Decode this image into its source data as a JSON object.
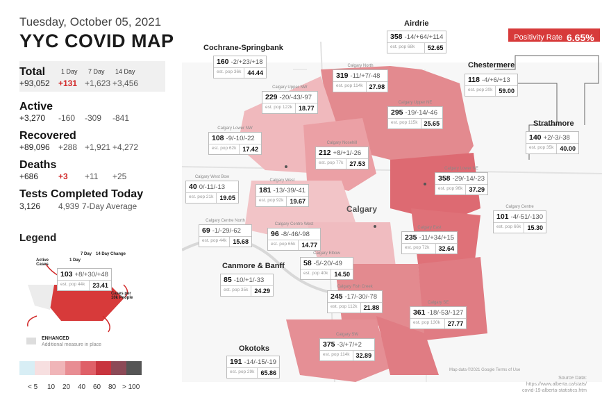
{
  "header": {
    "date": "Tuesday, October 05, 2021",
    "title": "YYC COVID MAP"
  },
  "positivity": {
    "label": "Positivity Rate",
    "value": "6.65%"
  },
  "stats": {
    "col_1day": "1 Day",
    "col_7day": "7 Day",
    "col_14day": "14 Day",
    "total": {
      "label": "Total",
      "value": "+93,052",
      "d1": "+131",
      "d7": "+1,623",
      "d14": "+3,456"
    },
    "active": {
      "label": "Active",
      "value": "+3,270",
      "d1": "-160",
      "d7": "-309",
      "d14": "-841"
    },
    "recovered": {
      "label": "Recovered",
      "value": "+89,096",
      "d1": "+288",
      "d7": "+1,921",
      "d14": "+4,272"
    },
    "deaths": {
      "label": "Deaths",
      "value": "+686",
      "d1": "+3",
      "d7": "+11",
      "d14": "+25"
    },
    "tests": {
      "label": "Tests Completed Today",
      "value": "3,126",
      "avg": "4,939",
      "avg_label": "7-Day Average"
    }
  },
  "legend": {
    "title": "Legend",
    "active_cases": "Active Cases",
    "one_day": "1 Day",
    "seven_day": "7 Day",
    "fourteen_day_change": "14 Day Change",
    "cases_per": "Cases per 10k People",
    "sample_value": "103",
    "sample_change": "+8/+30/+48",
    "sample_pop": "est. pop 44k",
    "sample_rate": "23.41",
    "enhanced": "ENHANCED",
    "enhanced_desc": "Additional measure in place",
    "scale": [
      "< 5",
      "10",
      "20",
      "40",
      "60",
      "80",
      "> 100"
    ],
    "scale_colors": [
      "#d8eef5",
      "#f7dfe0",
      "#f0b5b8",
      "#e88d93",
      "#df6068",
      "#c8343e",
      "#8c4a57",
      "#555555"
    ]
  },
  "map_labels": {
    "calgary": "Calgary",
    "cochrane": "Cochrane",
    "chestermere": "Chestermere",
    "airdrie": "Airdrie",
    "strathmore": "Strathmore",
    "canmore": "Canmore & Banff",
    "okotoks": "Okotoks",
    "cochrane_springbank": "Cochrane-Springbank"
  },
  "areas": [
    {
      "id": "cochrane-springbank",
      "name": "",
      "value": "160",
      "change": "-2/+23/+18",
      "pop": "est. pop 36k",
      "rate": "44.44"
    },
    {
      "id": "airdrie",
      "name": "",
      "value": "358",
      "change": "-14/+64/+114",
      "pop": "est. pop 68k",
      "rate": "52.65"
    },
    {
      "id": "chestermere",
      "name": "",
      "value": "118",
      "change": "-4/+6/+13",
      "pop": "est. pop 20k",
      "rate": "59.00"
    },
    {
      "id": "strathmore",
      "name": "",
      "value": "140",
      "change": "+2/-3/-38",
      "pop": "est. pop 35k",
      "rate": "40.00"
    },
    {
      "id": "calgary-north",
      "name": "Calgary North",
      "value": "319",
      "change": "-11/+7/-48",
      "pop": "est. pop 114k",
      "rate": "27.98"
    },
    {
      "id": "calgary-upper-nw",
      "name": "Calgary Upper NW",
      "value": "229",
      "change": "-20/-43/-97",
      "pop": "est. pop 122k",
      "rate": "18.77"
    },
    {
      "id": "calgary-upper-ne",
      "name": "Calgary Upper NE",
      "value": "295",
      "change": "-19/-14/-46",
      "pop": "est. pop 115k",
      "rate": "25.65"
    },
    {
      "id": "calgary-lower-nw",
      "name": "Calgary Lower NW",
      "value": "108",
      "change": "-9/-10/-22",
      "pop": "est. pop 62k",
      "rate": "17.42"
    },
    {
      "id": "calgary-nosehill",
      "name": "Calgary Nosehill",
      "value": "212",
      "change": "+8/+1/-26",
      "pop": "est. pop 77k",
      "rate": "27.53"
    },
    {
      "id": "calgary-lower-ne",
      "name": "Calgary Lower NE",
      "value": "358",
      "change": "-29/-14/-23",
      "pop": "est. pop 96k",
      "rate": "37.29"
    },
    {
      "id": "calgary-west-bow",
      "name": "Calgary West Bow",
      "value": "40",
      "change": "0/-11/-13",
      "pop": "est. pop 21k",
      "rate": "19.05"
    },
    {
      "id": "calgary-west",
      "name": "Calgary West",
      "value": "181",
      "change": "-13/-39/-41",
      "pop": "est. pop 92k",
      "rate": "19.67"
    },
    {
      "id": "calgary-centre",
      "name": "Calgary Centre",
      "value": "101",
      "change": "-4/-51/-130",
      "pop": "est. pop 66k",
      "rate": "15.30"
    },
    {
      "id": "calgary-centre-north",
      "name": "Calgary Centre North",
      "value": "69",
      "change": "-1/-29/-62",
      "pop": "est. pop 44k",
      "rate": "15.68"
    },
    {
      "id": "calgary-centre-west",
      "name": "Calgary Centre West",
      "value": "96",
      "change": "-8/-46/-98",
      "pop": "est. pop 65k",
      "rate": "14.77"
    },
    {
      "id": "calgary-east",
      "name": "Calgary East",
      "value": "235",
      "change": "-11/+34/+15",
      "pop": "est. pop 72k",
      "rate": "32.64"
    },
    {
      "id": "calgary-elbow",
      "name": "Calgary Elbow",
      "value": "58",
      "change": "-5/-20/-49",
      "pop": "est. pop 40k",
      "rate": "14.50"
    },
    {
      "id": "canmore-banff",
      "name": "",
      "value": "85",
      "change": "-10/+1/-33",
      "pop": "est. pop 35k",
      "rate": "24.29"
    },
    {
      "id": "calgary-fish-creek",
      "name": "Calgary Fish Creek",
      "value": "245",
      "change": "-17/-30/-78",
      "pop": "est. pop 112k",
      "rate": "21.88"
    },
    {
      "id": "calgary-se",
      "name": "Calgary SE",
      "value": "361",
      "change": "-18/-53/-127",
      "pop": "est. pop 130k",
      "rate": "27.77"
    },
    {
      "id": "calgary-sw",
      "name": "Calgary SW",
      "value": "375",
      "change": "-3/+7/+2",
      "pop": "est. pop 114k",
      "rate": "32.89"
    },
    {
      "id": "okotoks",
      "name": "",
      "value": "191",
      "change": "-14/-15/-19",
      "pop": "est. pop 29k",
      "rate": "65.86"
    }
  ],
  "source": {
    "line1": "Source Data:",
    "line2": "https://www.alberta.ca/stats/",
    "line3": "covid-19-alberta-statistics.htm"
  },
  "map_attrib": {
    "data": "Map data ©2021 Google",
    "terms": "Terms of Use"
  }
}
